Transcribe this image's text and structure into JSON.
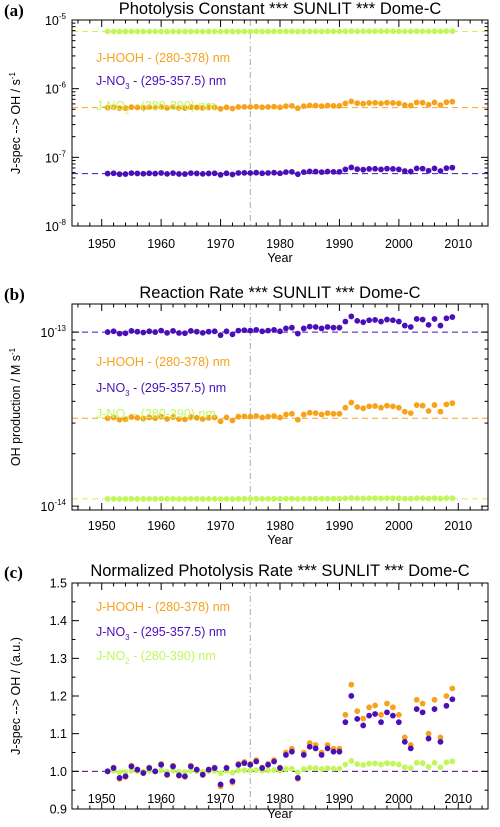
{
  "colors": {
    "hooh": "#f7a21b",
    "no3": "#4a0fb8",
    "no2": "#c2f75a",
    "vline": "#aaaaaa"
  },
  "chart_data": [
    {
      "type": "scatter",
      "panel_label": "(a)",
      "title": "Photolysis Constant *** SUNLIT *** Dome-C",
      "xlabel": "Year",
      "ylabel": "J-spec --> OH / s",
      "ylabel_sup": "-1",
      "yscale": "log",
      "xlim": [
        1945,
        2015
      ],
      "ylim": [
        1e-08,
        1e-05
      ],
      "xticks": [
        1950,
        1960,
        1970,
        1980,
        1990,
        2000,
        2010
      ],
      "yticks": [
        {
          "v": 1e-08,
          "base": "10",
          "exp": "-8"
        },
        {
          "v": 1e-07,
          "base": "10",
          "exp": "-7"
        },
        {
          "v": 1e-06,
          "base": "10",
          "exp": "-6"
        },
        {
          "v": 1e-05,
          "base": "10",
          "exp": "-5"
        }
      ],
      "vline_x": 1975,
      "legend": [
        {
          "key": "hooh",
          "pre": "J-HOOH - (280-378) nm",
          "sub": "",
          "post": ""
        },
        {
          "key": "no3",
          "pre": "J-NO",
          "sub": "3",
          "post": "- (295-357.5) nm"
        },
        {
          "key": "no2",
          "pre": "J-NO",
          "sub": "2",
          "post": "- (280-390) nm"
        }
      ],
      "series": [
        {
          "key": "no2",
          "ref": 6.8e-06,
          "base": 6.8e-06,
          "mode": "mult",
          "amp": 0.05
        },
        {
          "key": "hooh",
          "ref": 5.3e-07,
          "base": 5.3e-07,
          "mode": "mult",
          "amp": 1.0
        },
        {
          "key": "no3",
          "ref": 5.8e-08,
          "base": 5.8e-08,
          "mode": "mult",
          "amp": 1.0
        }
      ]
    },
    {
      "type": "scatter",
      "panel_label": "(b)",
      "title": "Reaction Rate *** SUNLIT *** Dome-C",
      "xlabel": "Year",
      "ylabel": "OH production / M s",
      "ylabel_sup": "-1",
      "yscale": "log",
      "xlim": [
        1945,
        2015
      ],
      "ylim": [
        9.5e-15,
        1.45e-13
      ],
      "xticks": [
        1950,
        1960,
        1970,
        1980,
        1990,
        2000,
        2010
      ],
      "yticks": [
        {
          "v": 1e-14,
          "base": "10",
          "exp": "-14"
        },
        {
          "v": 1e-13,
          "base": "10",
          "exp": "-13"
        }
      ],
      "vline_x": 1975,
      "legend": [
        {
          "key": "hooh",
          "pre": "J-HOOH - (280-378) nm",
          "sub": "",
          "post": ""
        },
        {
          "key": "no3",
          "pre": "J-NO",
          "sub": "3",
          "post": "- (295-357.5) nm"
        },
        {
          "key": "no2",
          "pre": "J-NO",
          "sub": "2",
          "post": "- (280-390) nm"
        }
      ],
      "series": [
        {
          "key": "no3",
          "ref": 1e-13,
          "base": 1e-13,
          "mode": "mult",
          "amp": 1.0
        },
        {
          "key": "hooh",
          "ref": 3.2e-14,
          "base": 3.2e-14,
          "mode": "mult",
          "amp": 1.0
        },
        {
          "key": "no2",
          "ref": 1.1e-14,
          "base": 1.1e-14,
          "mode": "mult",
          "amp": 0.05
        }
      ]
    },
    {
      "type": "scatter",
      "panel_label": "(c)",
      "title": "Normalized Photolysis Rate *** SUNLIT *** Dome-C",
      "xlabel": "Year",
      "ylabel": "J-spec --> OH / (a.u.)",
      "yscale": "linear",
      "xlim": [
        1945,
        2015
      ],
      "ylim": [
        0.9,
        1.5
      ],
      "xticks": [
        1950,
        1960,
        1970,
        1980,
        1990,
        2000,
        2010
      ],
      "yticks": [
        {
          "v": 0.9,
          "label": "0.9"
        },
        {
          "v": 1.0,
          "label": "1.0"
        },
        {
          "v": 1.1,
          "label": "1.1"
        },
        {
          "v": 1.2,
          "label": "1.2"
        },
        {
          "v": 1.3,
          "label": "1.3"
        },
        {
          "v": 1.4,
          "label": "1.4"
        },
        {
          "v": 1.5,
          "label": "1.5"
        }
      ],
      "vline_x": 1975,
      "legend": [
        {
          "key": "hooh",
          "pre": "J-HOOH - (280-378) nm",
          "sub": "",
          "post": ""
        },
        {
          "key": "no3",
          "pre": "J-NO",
          "sub": "3",
          "post": "- (295-357.5) nm"
        },
        {
          "key": "no2",
          "pre": "J-NO",
          "sub": "2",
          "post": "- (280-390) nm"
        }
      ],
      "series": [
        {
          "key": "no2",
          "ref": 1.0,
          "base": 1.0,
          "mode": "add",
          "amp": 0.12
        },
        {
          "key": "hooh",
          "ref": 1.0,
          "base": 1.0,
          "mode": "add",
          "amp": 1.0
        },
        {
          "key": "no3",
          "ref": 1.0,
          "base": 1.0,
          "mode": "add",
          "amp": 0.87
        }
      ]
    }
  ],
  "years": [
    1951,
    1952,
    1953,
    1954,
    1955,
    1956,
    1957,
    1958,
    1959,
    1960,
    1961,
    1962,
    1963,
    1964,
    1965,
    1966,
    1967,
    1968,
    1969,
    1970,
    1971,
    1972,
    1973,
    1974,
    1975,
    1976,
    1977,
    1978,
    1979,
    1980,
    1981,
    1982,
    1983,
    1984,
    1985,
    1986,
    1987,
    1988,
    1989,
    1990,
    1991,
    1992,
    1993,
    1994,
    1995,
    1996,
    1997,
    1998,
    1999,
    2000,
    2001,
    2002,
    2003,
    2004,
    2005,
    2006,
    2007,
    2008,
    2009
  ],
  "anomaly": [
    0.0,
    0.01,
    -0.02,
    -0.015,
    0.015,
    0.005,
    -0.005,
    0.01,
    0.0,
    0.02,
    -0.01,
    0.015,
    -0.012,
    -0.015,
    0.015,
    0.005,
    -0.01,
    0.005,
    0.01,
    -0.04,
    0.01,
    -0.03,
    0.02,
    0.025,
    0.02,
    0.03,
    0.01,
    0.02,
    0.03,
    0.01,
    0.05,
    0.06,
    -0.02,
    0.05,
    0.075,
    0.07,
    0.05,
    0.07,
    0.06,
    0.06,
    0.15,
    0.23,
    0.16,
    0.14,
    0.17,
    0.175,
    0.15,
    0.18,
    0.17,
    0.15,
    0.09,
    0.07,
    0.19,
    0.18,
    0.1,
    0.19,
    0.09,
    0.2,
    0.22
  ]
}
